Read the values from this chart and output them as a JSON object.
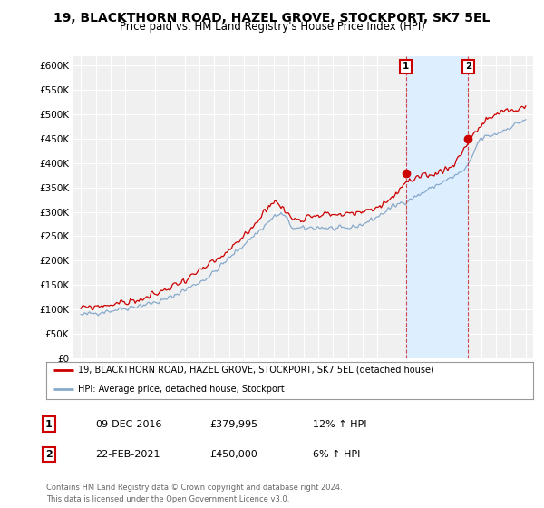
{
  "title": "19, BLACKTHORN ROAD, HAZEL GROVE, STOCKPORT, SK7 5EL",
  "subtitle": "Price paid vs. HM Land Registry's House Price Index (HPI)",
  "title_fontsize": 10,
  "subtitle_fontsize": 8.5,
  "ylim": [
    0,
    620000
  ],
  "yticks": [
    0,
    50000,
    100000,
    150000,
    200000,
    250000,
    300000,
    350000,
    400000,
    450000,
    500000,
    550000,
    600000
  ],
  "ytick_labels": [
    "£0",
    "£50K",
    "£100K",
    "£150K",
    "£200K",
    "£250K",
    "£300K",
    "£350K",
    "£400K",
    "£450K",
    "£500K",
    "£550K",
    "£600K"
  ],
  "background_color": "#ffffff",
  "plot_bg_color": "#f0f0f0",
  "grid_color": "#ffffff",
  "red_line_color": "#cc0000",
  "blue_line_color": "#88aacc",
  "shade_color": "#ddeeff",
  "marker1_year": 2016.92,
  "marker1_value": 379995,
  "marker2_year": 2021.12,
  "marker2_value": 450000,
  "legend_entries": [
    "19, BLACKTHORN ROAD, HAZEL GROVE, STOCKPORT, SK7 5EL (detached house)",
    "HPI: Average price, detached house, Stockport"
  ],
  "table_rows": [
    [
      "1",
      "09-DEC-2016",
      "£379,995",
      "12% ↑ HPI"
    ],
    [
      "2",
      "22-FEB-2021",
      "£450,000",
      "6% ↑ HPI"
    ]
  ],
  "footnote": "Contains HM Land Registry data © Crown copyright and database right 2024.\nThis data is licensed under the Open Government Licence v3.0.",
  "x_start_year": 1995,
  "x_end_year": 2025
}
